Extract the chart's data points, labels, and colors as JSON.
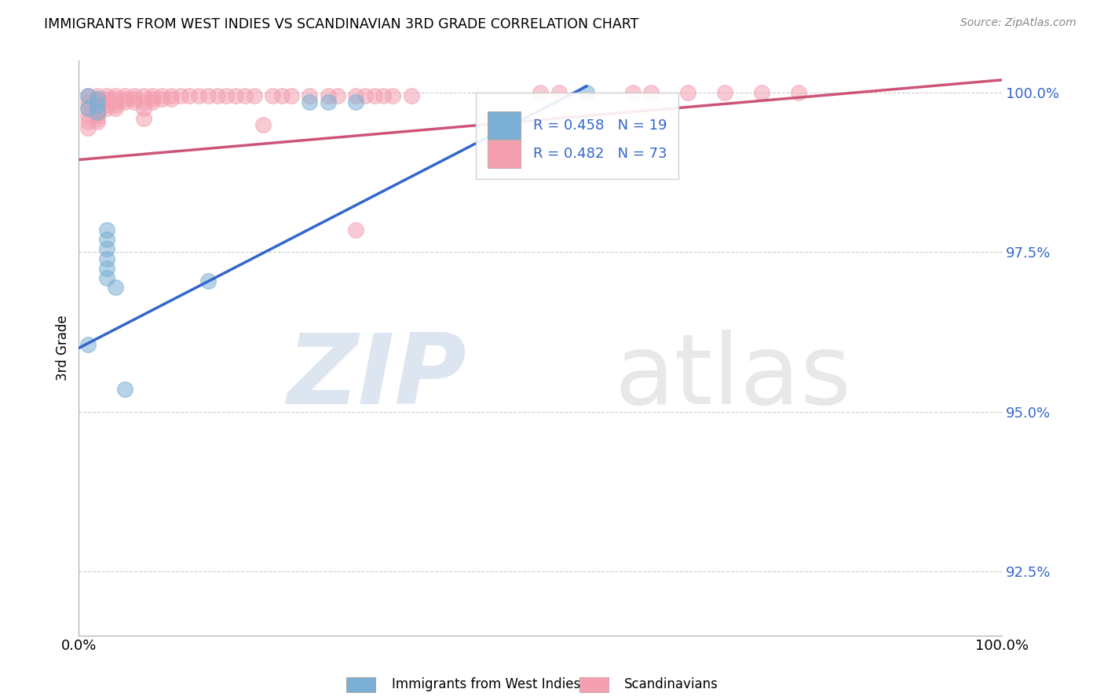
{
  "title": "IMMIGRANTS FROM WEST INDIES VS SCANDINAVIAN 3RD GRADE CORRELATION CHART",
  "source": "Source: ZipAtlas.com",
  "ylabel": "3rd Grade",
  "xlim": [
    0.0,
    1.0
  ],
  "ylim": [
    0.915,
    1.005
  ],
  "yticks": [
    0.925,
    0.95,
    0.975,
    1.0
  ],
  "ytick_labels": [
    "92.5%",
    "95.0%",
    "97.5%",
    "100.0%"
  ],
  "xticks": [
    0.0,
    0.2,
    0.4,
    0.6,
    0.8,
    1.0
  ],
  "xtick_labels": [
    "0.0%",
    "",
    "",
    "",
    "",
    "100.0%"
  ],
  "blue_color": "#7BAFD4",
  "pink_color": "#F4A0B0",
  "blue_line_color": "#3366CC",
  "pink_line_color": "#CC5577",
  "R_blue": 0.458,
  "N_blue": 19,
  "R_pink": 0.482,
  "N_pink": 73,
  "legend_label_blue": "Immigrants from West Indies",
  "legend_label_pink": "Scandinavians",
  "watermark_zip": "ZIP",
  "watermark_atlas": "atlas",
  "blue_scatter_x": [
    0.01,
    0.01,
    0.02,
    0.02,
    0.02,
    0.03,
    0.03,
    0.03,
    0.03,
    0.03,
    0.03,
    0.04,
    0.05,
    0.14,
    0.25,
    0.27,
    0.3,
    0.55,
    0.01
  ],
  "blue_scatter_y": [
    0.9995,
    0.9975,
    0.999,
    0.998,
    0.997,
    0.9785,
    0.977,
    0.9755,
    0.974,
    0.9725,
    0.971,
    0.9695,
    0.9535,
    0.9705,
    0.9985,
    0.9985,
    0.9985,
    1.0,
    0.9605
  ],
  "pink_scatter_x": [
    0.01,
    0.01,
    0.01,
    0.01,
    0.01,
    0.01,
    0.02,
    0.02,
    0.02,
    0.02,
    0.02,
    0.02,
    0.02,
    0.02,
    0.02,
    0.03,
    0.03,
    0.03,
    0.03,
    0.03,
    0.04,
    0.04,
    0.04,
    0.04,
    0.04,
    0.05,
    0.05,
    0.05,
    0.06,
    0.06,
    0.06,
    0.07,
    0.07,
    0.07,
    0.07,
    0.08,
    0.08,
    0.08,
    0.09,
    0.09,
    0.1,
    0.1,
    0.11,
    0.12,
    0.13,
    0.14,
    0.15,
    0.16,
    0.17,
    0.18,
    0.19,
    0.2,
    0.21,
    0.22,
    0.23,
    0.25,
    0.27,
    0.28,
    0.3,
    0.3,
    0.31,
    0.32,
    0.33,
    0.34,
    0.36,
    0.5,
    0.52,
    0.6,
    0.62,
    0.66,
    0.7,
    0.74,
    0.78
  ],
  "pink_scatter_y": [
    0.9995,
    0.9985,
    0.9975,
    0.9965,
    0.9955,
    0.9945,
    0.9995,
    0.999,
    0.9985,
    0.998,
    0.9975,
    0.997,
    0.9965,
    0.996,
    0.9955,
    0.9995,
    0.999,
    0.9985,
    0.998,
    0.9975,
    0.9995,
    0.999,
    0.9985,
    0.998,
    0.9975,
    0.9995,
    0.999,
    0.9985,
    0.9995,
    0.999,
    0.9985,
    0.9995,
    0.9985,
    0.9975,
    0.996,
    0.9995,
    0.999,
    0.9985,
    0.9995,
    0.999,
    0.9995,
    0.999,
    0.9995,
    0.9995,
    0.9995,
    0.9995,
    0.9995,
    0.9995,
    0.9995,
    0.9995,
    0.9995,
    0.995,
    0.9995,
    0.9995,
    0.9995,
    0.9995,
    0.9995,
    0.9995,
    0.9995,
    0.9785,
    0.9995,
    0.9995,
    0.9995,
    0.9995,
    0.9995,
    1.0,
    1.0,
    1.0,
    1.0,
    1.0,
    1.0,
    1.0,
    1.0
  ]
}
